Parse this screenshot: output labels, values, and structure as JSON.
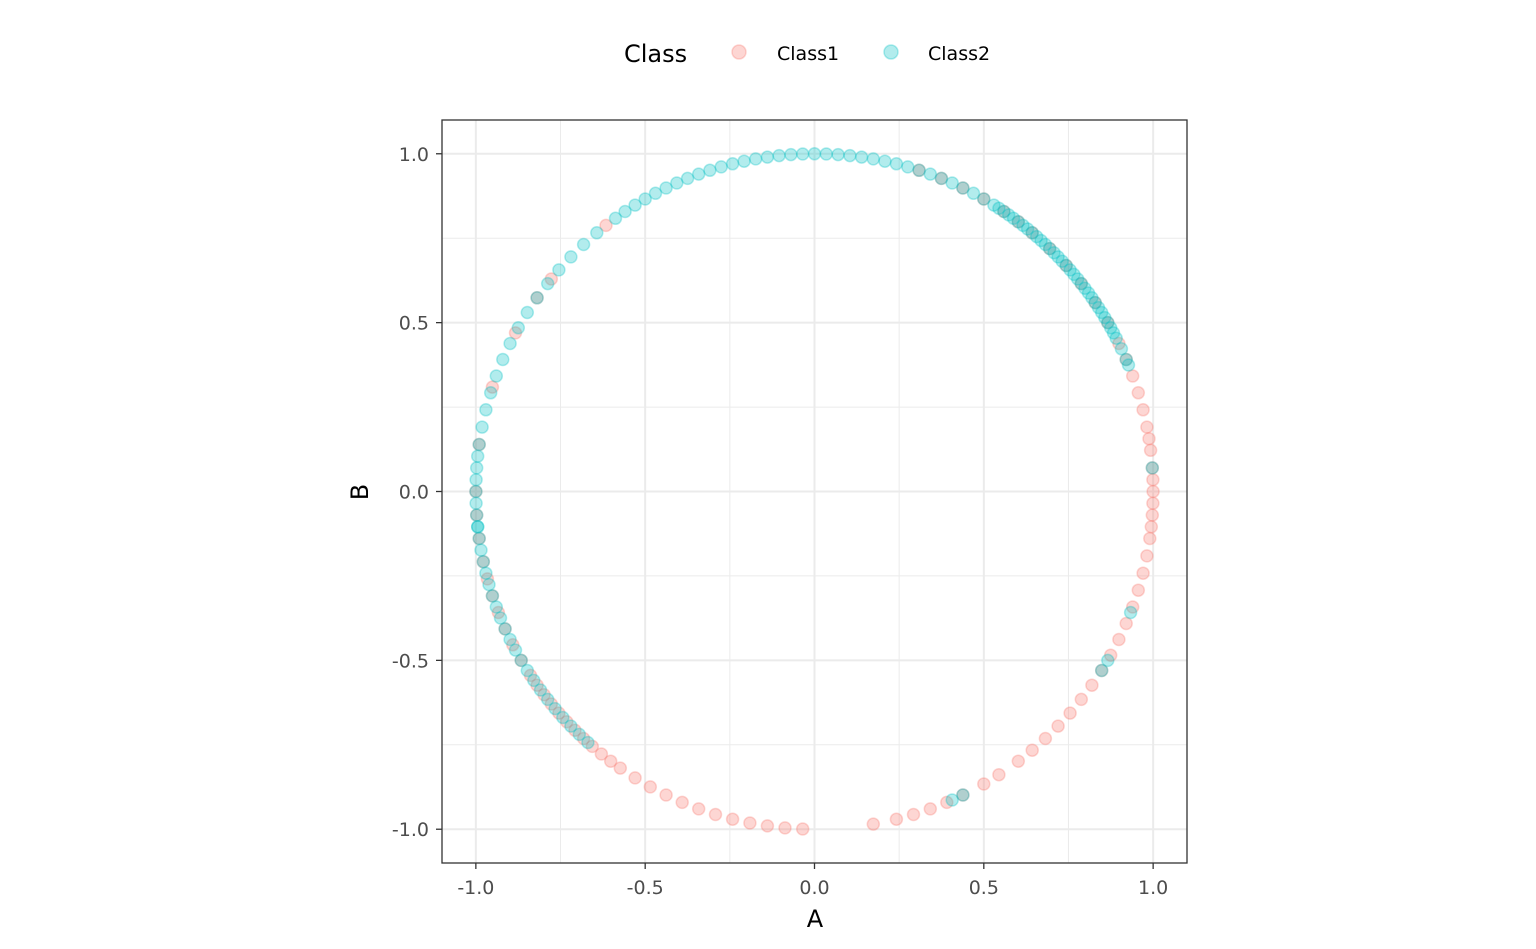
{
  "chart_data": {
    "type": "scatter",
    "xlabel": "A",
    "ylabel": "B",
    "xlim": [
      -1.1,
      1.1
    ],
    "ylim": [
      -1.1,
      1.1
    ],
    "grid": true,
    "legend": {
      "title": "Class",
      "position": "top",
      "entries": [
        "Class1",
        "Class2"
      ]
    },
    "xticks": [
      {
        "value": -1.0,
        "label": "-1.0"
      },
      {
        "value": -0.5,
        "label": "-0.5"
      },
      {
        "value": 0.0,
        "label": "0.0"
      },
      {
        "value": 0.5,
        "label": "0.5"
      },
      {
        "value": 1.0,
        "label": "1.0"
      }
    ],
    "yticks": [
      {
        "value": -1.0,
        "label": "-1.0"
      },
      {
        "value": -0.5,
        "label": "-0.5"
      },
      {
        "value": 0.0,
        "label": "0.0"
      },
      {
        "value": 0.5,
        "label": "0.5"
      },
      {
        "value": 1.0,
        "label": "1.0"
      }
    ],
    "point_alpha": 0.3,
    "series": [
      {
        "name": "Class1",
        "color": "#F8766D",
        "angles_deg": [
          -92,
          -95,
          -98,
          -101,
          -104,
          -107,
          -110,
          -113,
          -116,
          -119,
          -122,
          -125,
          -127,
          -129,
          -131,
          -133,
          -135,
          -137,
          -139,
          -141,
          -143,
          -145,
          -147,
          -150,
          -153,
          -156,
          -159,
          -162,
          -165,
          -168,
          -172,
          -176,
          -180,
          172,
          162,
          152,
          145,
          141,
          128,
          -80,
          -76,
          -73,
          -70,
          -67,
          -64,
          -60,
          -57,
          -53,
          -50,
          -47,
          -44,
          -41,
          -38,
          -35,
          -32,
          -29,
          -26,
          -23,
          -20,
          -17,
          -14,
          -11,
          -8,
          -6,
          -4,
          -2,
          0,
          2,
          4,
          7,
          9,
          11,
          14,
          17,
          20,
          23,
          26,
          30,
          34,
          38,
          42,
          46,
          50,
          53,
          56,
          60,
          64,
          68,
          72
        ]
      },
      {
        "name": "Class2",
        "color": "#00BFC4",
        "angles_deg": [
          88,
          86,
          84,
          82,
          80,
          78,
          76,
          74,
          72,
          70,
          68,
          66,
          64,
          62,
          60,
          58,
          57,
          56,
          55,
          54,
          53,
          52,
          51,
          50,
          49,
          48,
          47,
          46,
          45,
          44,
          43,
          42,
          41,
          40,
          39,
          38,
          37,
          36,
          35,
          34,
          33,
          32,
          31,
          30,
          29,
          28,
          27,
          25,
          23,
          22,
          90,
          92,
          94,
          96,
          98,
          100,
          102,
          104,
          106,
          108,
          110,
          112,
          114,
          116,
          118,
          120,
          122,
          124,
          126,
          130,
          133,
          136,
          139,
          142,
          145,
          148,
          151,
          154,
          157,
          160,
          163,
          166,
          169,
          172,
          174,
          176,
          178,
          180,
          182,
          184,
          186,
          -174,
          -172,
          -170,
          -168,
          -166,
          -164,
          -162,
          -160,
          -158,
          -156,
          -154,
          -152,
          -150,
          -148,
          -146,
          -144,
          -142,
          -140,
          -138,
          -136,
          -134,
          -132,
          -66,
          -64,
          -32,
          -30,
          -21,
          4
        ]
      }
    ]
  }
}
